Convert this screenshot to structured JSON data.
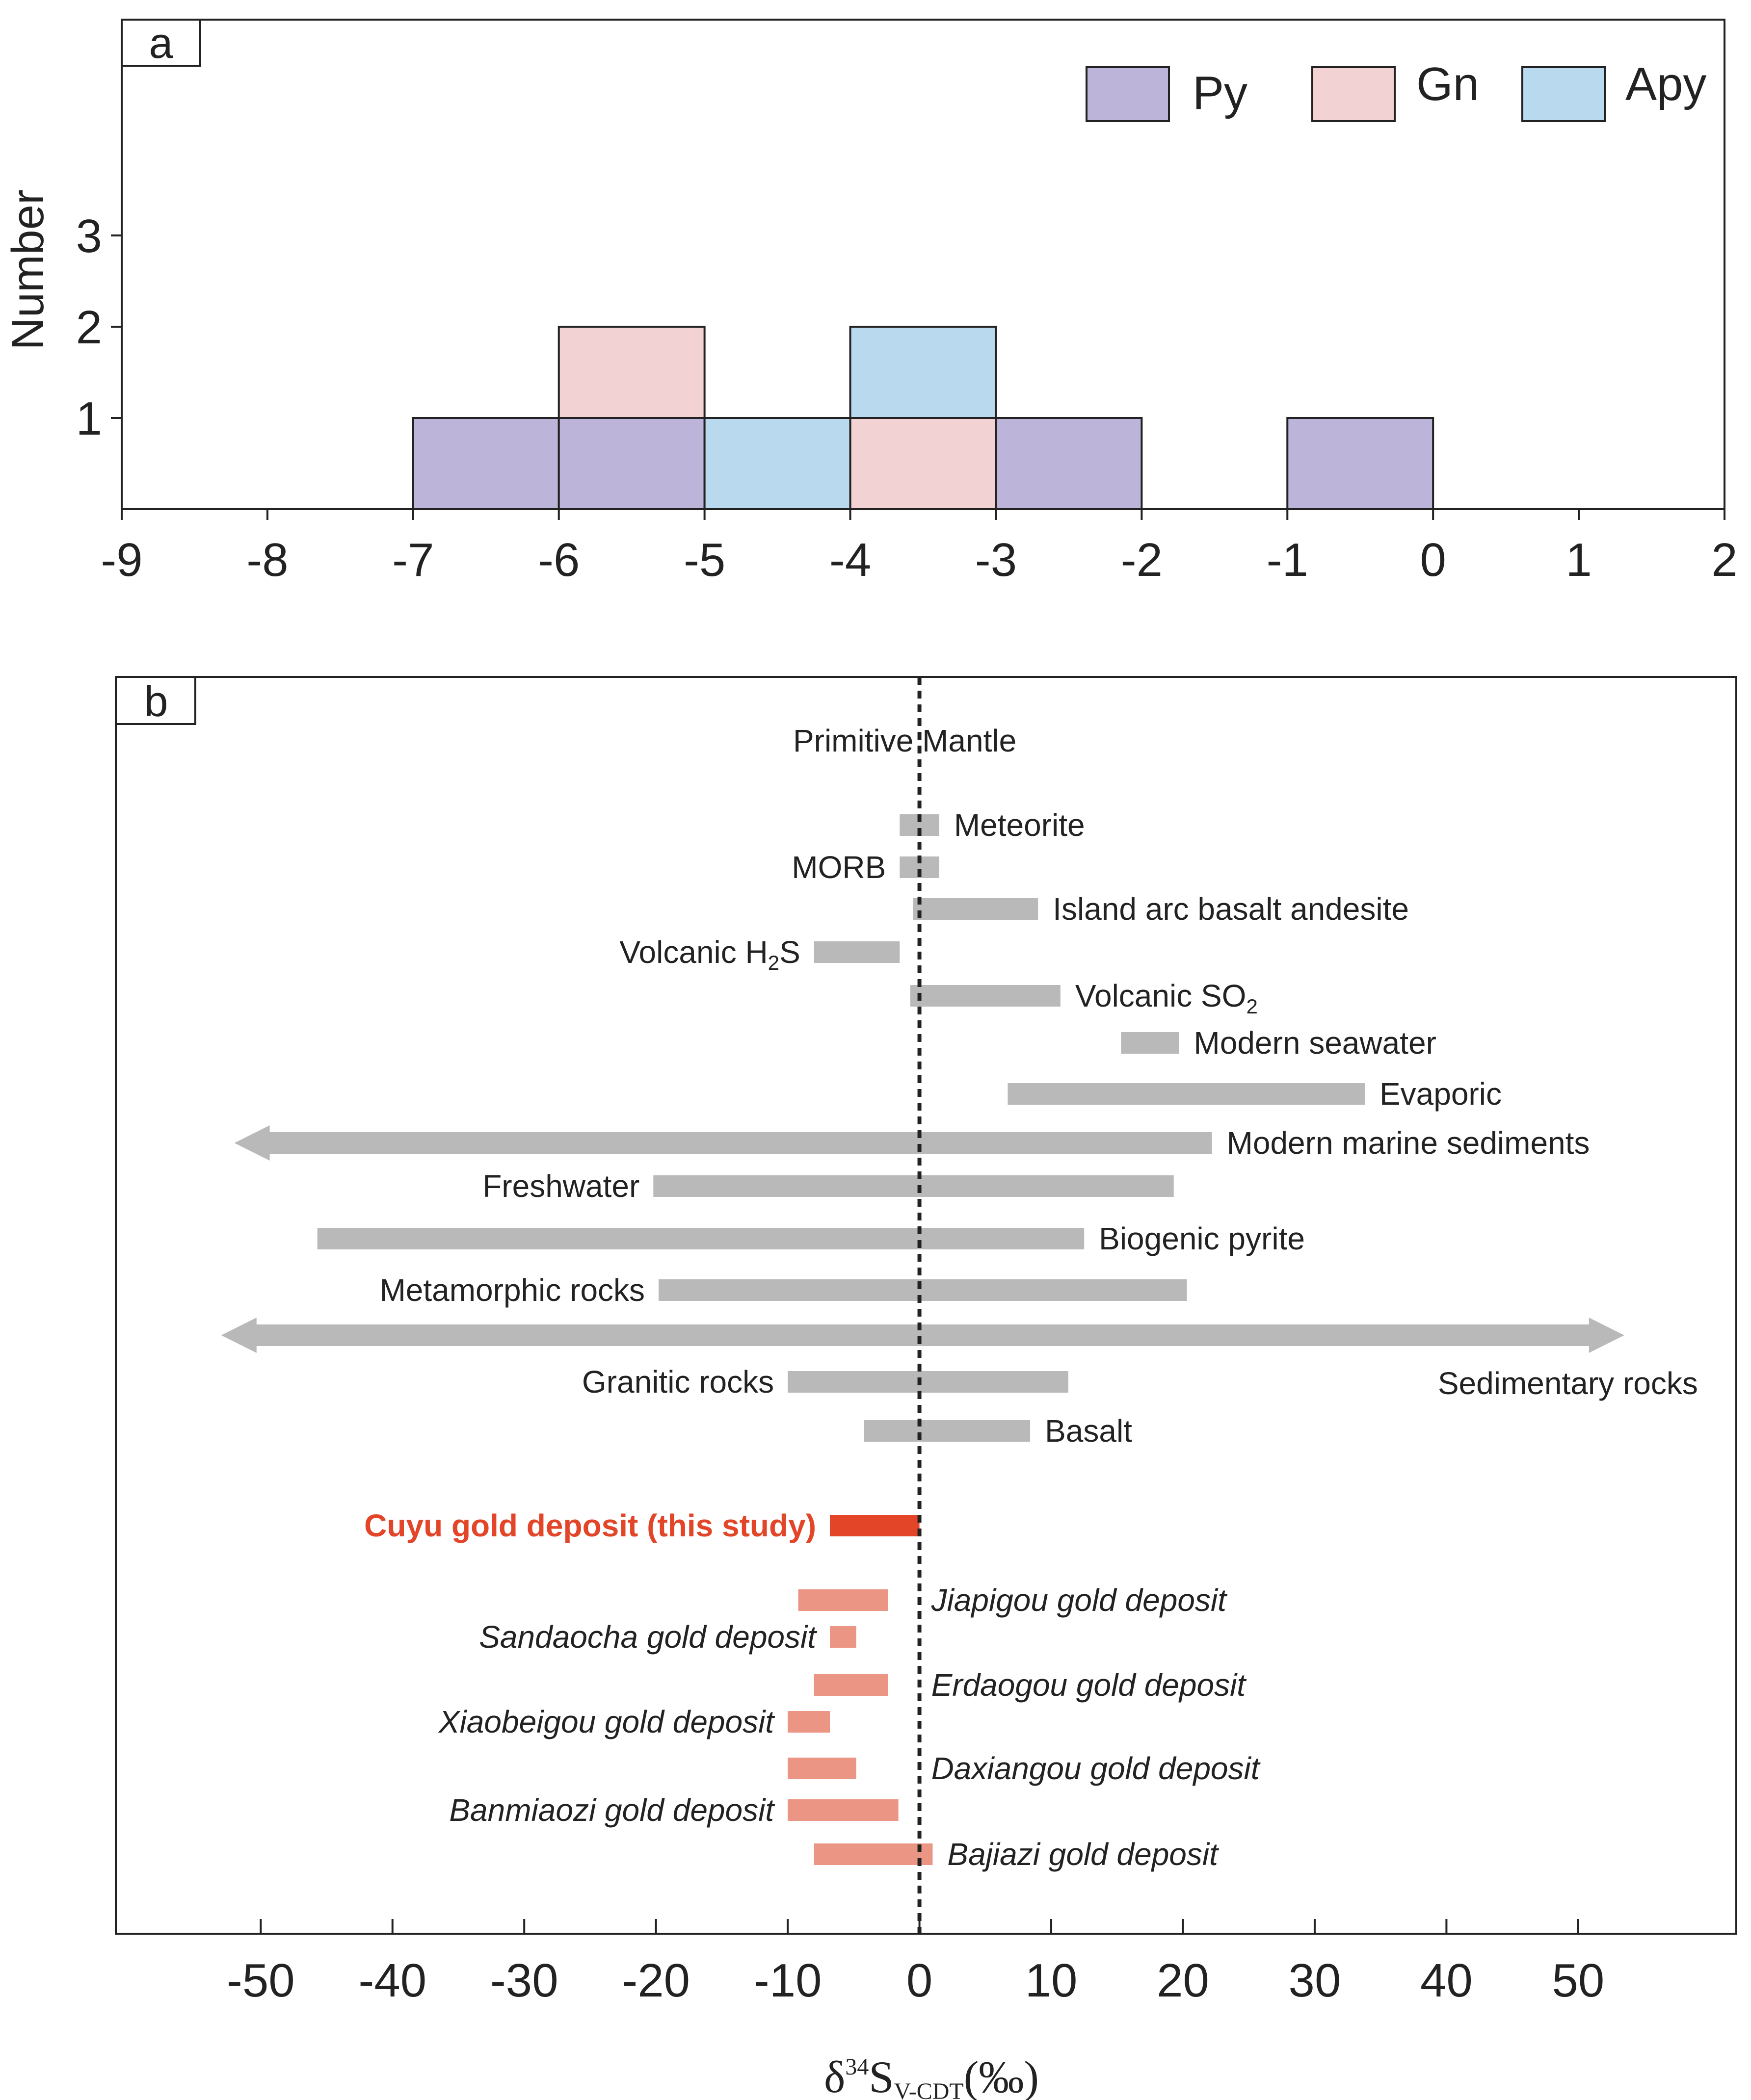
{
  "colors": {
    "py": "#BDB5D9",
    "gn": "#F2D2D3",
    "apy": "#B8D9EE",
    "range_bar": "#B9B9B9",
    "highlight": "#E24527",
    "deposit": "#EB9585",
    "axis": "#222222"
  },
  "chart_data": [
    {
      "type": "bar",
      "panel": "a",
      "title": "",
      "ylabel": "Number",
      "xlabel": "",
      "xlim": [
        -9,
        2
      ],
      "ylim": [
        0,
        5.4
      ],
      "xticks": [
        -9,
        -8,
        -7,
        -6,
        -5,
        -4,
        -3,
        -2,
        -1,
        0,
        1,
        2
      ],
      "xtick_labels": [
        "-9",
        "-8",
        "-7",
        "-6",
        "-5",
        "-4",
        "-3",
        "-2",
        "-1",
        "0",
        "1",
        "2"
      ],
      "yticks": [
        1,
        2,
        3
      ],
      "ytick_labels": [
        "1",
        "2",
        "3"
      ],
      "stacked": true,
      "bin_width": 1,
      "legend_position": "top-right",
      "series": [
        {
          "name": "Py",
          "color_key": "py",
          "bins": [
            {
              "x0": -7,
              "count": 1
            },
            {
              "x0": -6,
              "count": 1
            },
            {
              "x0": -3,
              "count": 1
            },
            {
              "x0": -1,
              "count": 1
            }
          ]
        },
        {
          "name": "Gn",
          "color_key": "gn",
          "bins": [
            {
              "x0": -6,
              "count": 1
            },
            {
              "x0": -4,
              "count": 1
            }
          ]
        },
        {
          "name": "Apy",
          "color_key": "apy",
          "bins": [
            {
              "x0": -5,
              "count": 1
            },
            {
              "x0": -4,
              "count": 1
            }
          ]
        }
      ]
    },
    {
      "type": "range",
      "panel": "b",
      "xlabel": "δ34SV-CDT(‰)",
      "xlabel_parts": {
        "delta": "δ",
        "sup": "34",
        "S": "S",
        "sub": "V-CDT",
        "unit": "(‰)"
      },
      "xlim": [
        -61,
        62
      ],
      "xticks": [
        -50,
        -40,
        -30,
        -20,
        -10,
        0,
        10,
        20,
        30,
        40,
        50
      ],
      "xtick_labels": [
        "-50",
        "-40",
        "-30",
        "-20",
        "-10",
        "0",
        "10",
        "20",
        "30",
        "40",
        "50"
      ],
      "reference_line": {
        "x": 0,
        "label": "Primitive Mantle"
      },
      "ranges": [
        {
          "label": "Meteorite",
          "min": -1.5,
          "max": 1.5,
          "label_side": "right",
          "style": "gray"
        },
        {
          "label": "MORB",
          "min": -1.5,
          "max": 1.5,
          "label_side": "left",
          "style": "gray"
        },
        {
          "label": "Island arc basalt andesite",
          "min": -0.5,
          "max": 9,
          "label_side": "right",
          "style": "gray"
        },
        {
          "label": "Volcanic H",
          "label_sub": "2",
          "label_tail": "S",
          "min": -8,
          "max": -1.5,
          "label_side": "left",
          "style": "gray"
        },
        {
          "label": "Volcanic SO",
          "label_sub": "2",
          "label_tail": "",
          "min": -0.7,
          "max": 10.7,
          "label_side": "right",
          "style": "gray"
        },
        {
          "label": "Modern seawater",
          "min": 15.3,
          "max": 19.7,
          "label_side": "right",
          "style": "gray"
        },
        {
          "label": "Evaporic",
          "min": 6.7,
          "max": 33.8,
          "label_side": "right",
          "style": "gray"
        },
        {
          "label": "Modern marine sediments",
          "min": -52,
          "max": 22.2,
          "label_side": "right",
          "style": "gray",
          "arrow_left": true
        },
        {
          "label": "Freshwater",
          "min": -20.2,
          "max": 19.3,
          "label_side": "left",
          "style": "gray"
        },
        {
          "label": "Biogenic pyrite",
          "min": -45.7,
          "max": 12.5,
          "label_side": "right",
          "style": "gray"
        },
        {
          "label": "Metamorphic rocks",
          "min": -19.8,
          "max": 20.3,
          "label_side": "left",
          "style": "gray"
        },
        {
          "label": "Sedimentary rocks",
          "min": -53,
          "max": 53.5,
          "label_side": "below-right",
          "style": "gray",
          "arrow_left": true,
          "arrow_right": true
        },
        {
          "label": "Granitic rocks",
          "min": -10,
          "max": 11.3,
          "label_side": "left",
          "style": "gray"
        },
        {
          "label": "Basalt",
          "min": -4.2,
          "max": 8.4,
          "label_side": "right",
          "style": "gray"
        },
        {
          "label": "Cuyu gold deposit (this study)",
          "min": -6.8,
          "max": 0,
          "label_side": "left",
          "style": "highlight"
        },
        {
          "label": "Jiapigou gold deposit",
          "min": -9.2,
          "max": -2.4,
          "label_side": "right-of-zero",
          "style": "deposit"
        },
        {
          "label": "Sandaocha gold deposit",
          "min": -6.8,
          "max": -4.8,
          "label_side": "left",
          "style": "deposit"
        },
        {
          "label": "Erdaogou gold deposit",
          "min": -8,
          "max": -2.4,
          "label_side": "right-of-zero",
          "style": "deposit"
        },
        {
          "label": "Xiaobeigou gold deposit",
          "min": -10,
          "max": -6.8,
          "label_side": "left",
          "style": "deposit"
        },
        {
          "label": "Daxiangou gold deposit",
          "min": -10,
          "max": -4.8,
          "label_side": "right-of-zero",
          "style": "deposit"
        },
        {
          "label": "Banmiaozi gold deposit",
          "min": -10,
          "max": -1.6,
          "label_side": "left",
          "style": "deposit"
        },
        {
          "label": "Bajiazi gold deposit",
          "min": -8,
          "max": 1,
          "label_side": "right",
          "style": "deposit"
        }
      ]
    }
  ]
}
